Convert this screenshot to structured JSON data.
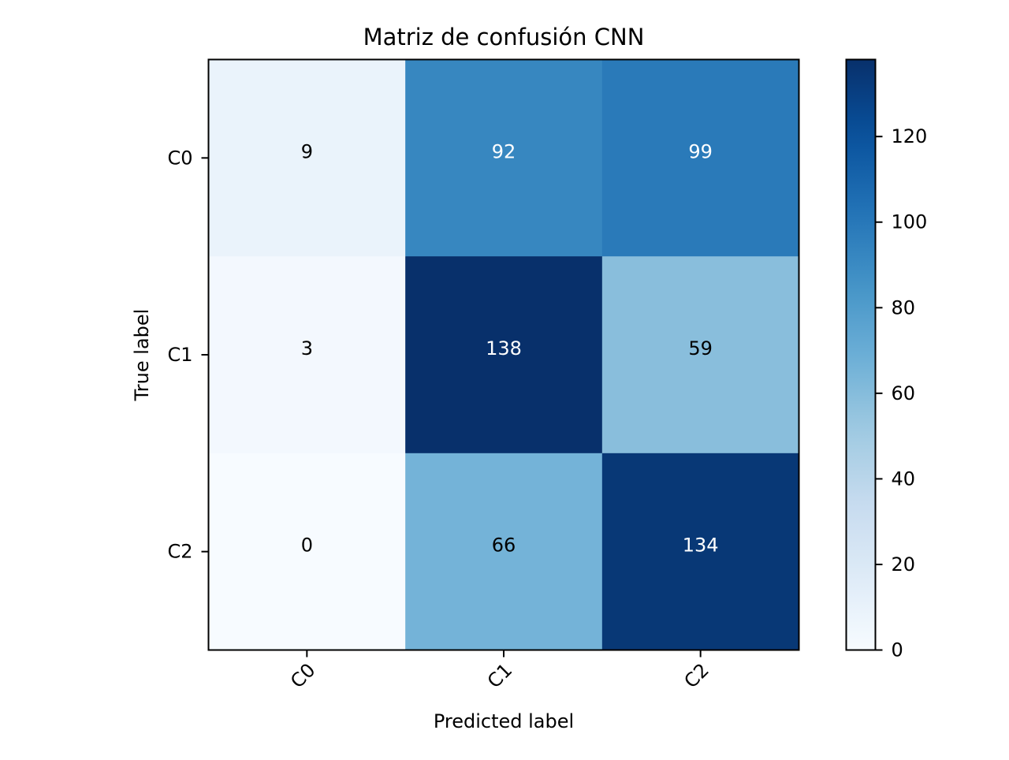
{
  "chart_data": {
    "type": "heatmap",
    "title": "Matriz de confusión CNN",
    "xlabel": "Predicted label",
    "ylabel": "True label",
    "x_categories": [
      "C0",
      "C1",
      "C2"
    ],
    "y_categories": [
      "C0",
      "C1",
      "C2"
    ],
    "values": [
      [
        9,
        92,
        99
      ],
      [
        3,
        138,
        59
      ],
      [
        0,
        66,
        134
      ]
    ],
    "colormap": "Blues",
    "vmin": 0,
    "vmax": 138,
    "colorbar_ticks": [
      0,
      20,
      40,
      60,
      80,
      100,
      120
    ],
    "colorbar_tick_labels": [
      "0",
      "20",
      "40",
      "60",
      "80",
      "100",
      "120"
    ],
    "x_tick_rotation_deg": 45,
    "text_color_dark": "#000000",
    "text_color_light": "#ffffff"
  }
}
